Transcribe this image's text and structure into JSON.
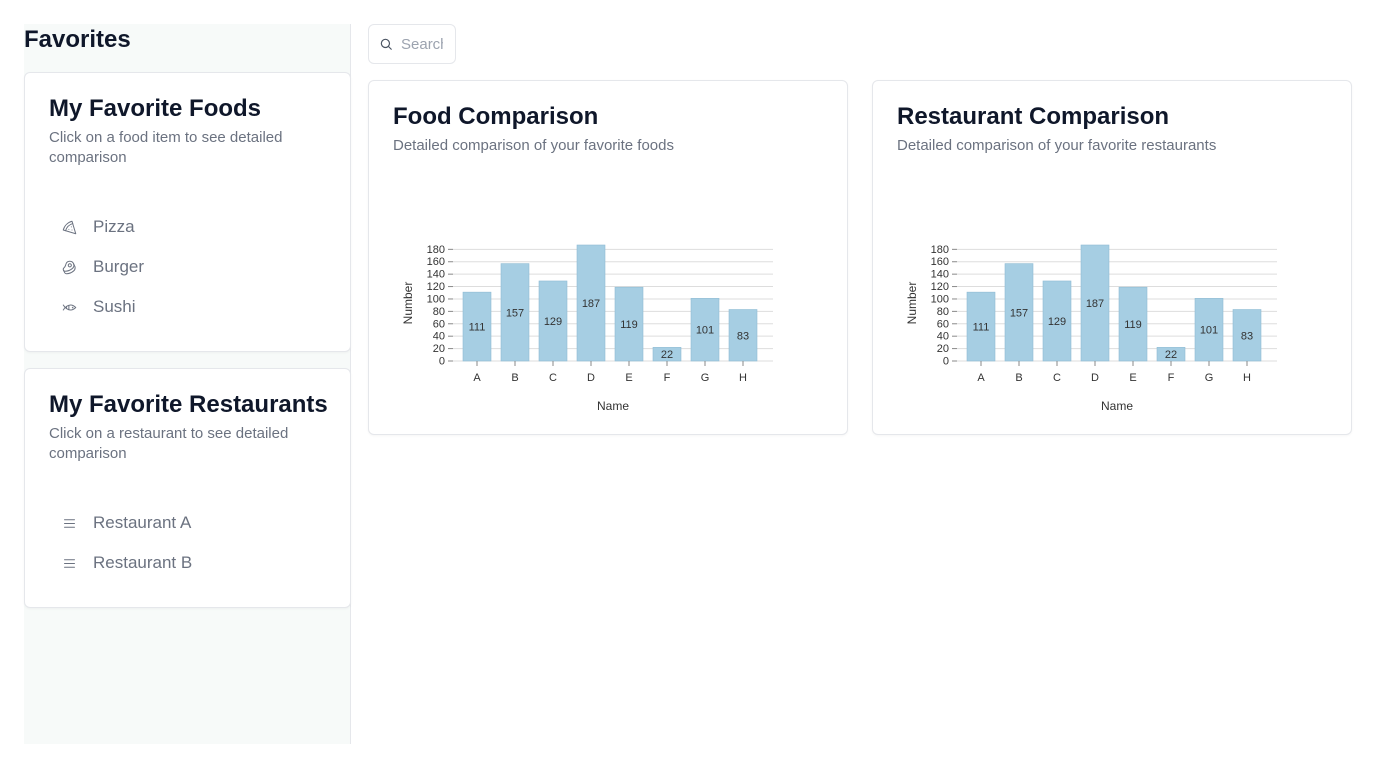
{
  "sidebar": {
    "title": "Favorites",
    "foods_card": {
      "title": "My Favorite Foods",
      "description": "Click on a food item to see detailed comparison",
      "items": [
        {
          "label": "Pizza",
          "icon": "pizza-icon"
        },
        {
          "label": "Burger",
          "icon": "beef-icon"
        },
        {
          "label": "Sushi",
          "icon": "fish-icon"
        }
      ]
    },
    "restaurants_card": {
      "title": "My Favorite Restaurants",
      "description": "Click on a restaurant to see detailed comparison",
      "items": [
        {
          "label": "Restaurant A",
          "icon": "menu-icon"
        },
        {
          "label": "Restaurant B",
          "icon": "menu-icon"
        }
      ]
    }
  },
  "search": {
    "placeholder": "Search"
  },
  "food_card": {
    "title": "Food Comparison",
    "description": "Detailed comparison of your favorite foods"
  },
  "restaurant_card": {
    "title": "Restaurant Comparison",
    "description": "Detailed comparison of your favorite restaurants"
  },
  "colors": {
    "bar": "#a6cee3",
    "grid": "#dddddd"
  },
  "chart_data": [
    {
      "type": "bar",
      "categories": [
        "A",
        "B",
        "C",
        "D",
        "E",
        "F",
        "G",
        "H"
      ],
      "values": [
        111,
        157,
        129,
        187,
        119,
        22,
        101,
        83
      ],
      "xlabel": "Name",
      "ylabel": "Number",
      "yticks": [
        0,
        20,
        40,
        60,
        80,
        100,
        120,
        140,
        160,
        180
      ],
      "ylim": [
        0,
        187
      ],
      "grid": true
    },
    {
      "type": "bar",
      "categories": [
        "A",
        "B",
        "C",
        "D",
        "E",
        "F",
        "G",
        "H"
      ],
      "values": [
        111,
        157,
        129,
        187,
        119,
        22,
        101,
        83
      ],
      "xlabel": "Name",
      "ylabel": "Number",
      "yticks": [
        0,
        20,
        40,
        60,
        80,
        100,
        120,
        140,
        160,
        180
      ],
      "ylim": [
        0,
        187
      ],
      "grid": true
    }
  ]
}
